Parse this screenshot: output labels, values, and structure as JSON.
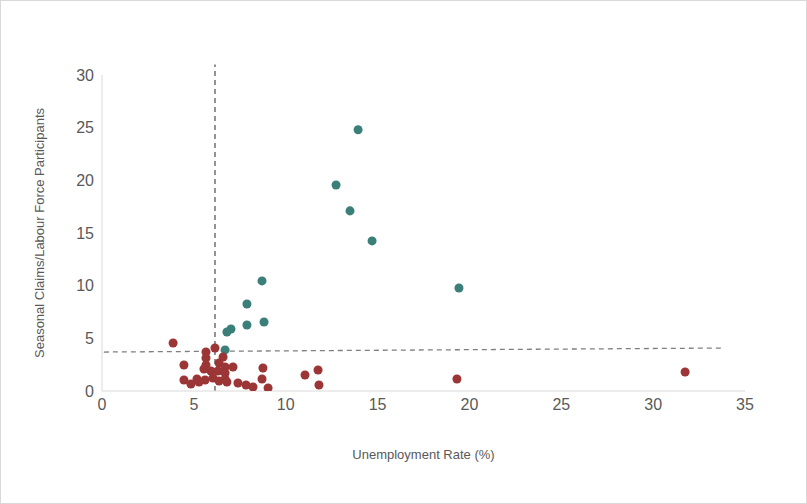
{
  "chart_data": {
    "type": "scatter",
    "x_label": "Unemployment Rate (%)",
    "y_label": "Seasonal Claims/Labour Force Participants",
    "xlim": [
      0,
      35
    ],
    "xticks": [
      0,
      5,
      10,
      15,
      20,
      25,
      30,
      35
    ],
    "ylim": [
      0,
      30
    ],
    "yticks": [
      0,
      5,
      10,
      15,
      20,
      25,
      30
    ],
    "grid": false,
    "series": [
      {
        "color": "#3b7f7a",
        "marker": "circle",
        "x": [
          13.94,
          12.74,
          13.5,
          14.7,
          8.71,
          19.43,
          7.89,
          8.82,
          7.89,
          7.02,
          6.8,
          6.7
        ],
        "y": [
          24.8,
          19.56,
          17.1,
          14.25,
          10.45,
          9.78,
          8.26,
          6.55,
          6.27,
          5.89,
          5.6,
          3.9
        ]
      },
      {
        "color": "#9c3535",
        "marker": "circle",
        "x": [
          3.87,
          6.15,
          5.66,
          5.66,
          6.59,
          4.46,
          5.66,
          6.37,
          6.7,
          7.13,
          8.76,
          5.55,
          5.93,
          6.31,
          6.7,
          11.76,
          11.05,
          31.74,
          4.46,
          5.17,
          5.61,
          6.04,
          6.37,
          6.7,
          4.84,
          5.28,
          6.8,
          7.4,
          7.84,
          8.22,
          8.71,
          9.04,
          11.81,
          19.32
        ],
        "y": [
          4.56,
          4.08,
          3.7,
          3.13,
          3.23,
          2.47,
          2.47,
          2.66,
          2.28,
          2.28,
          2.18,
          2.09,
          1.9,
          1.9,
          1.71,
          2.0,
          1.52,
          1.8,
          1.04,
          1.14,
          1.04,
          1.23,
          0.95,
          1.14,
          0.66,
          0.85,
          0.85,
          0.76,
          0.57,
          0.38,
          1.14,
          0.28,
          0.57,
          1.14
        ]
      }
    ],
    "reference_lines": [
      {
        "x": [
          6.15,
          6.15
        ],
        "y": [
          0,
          31
        ],
        "color": "#595959",
        "line_style": "dashed"
      },
      {
        "x": [
          0.1,
          33.9
        ],
        "y": [
          3.7,
          4.08
        ],
        "color": "#7f7f7f",
        "line_style": "dashed"
      }
    ]
  }
}
